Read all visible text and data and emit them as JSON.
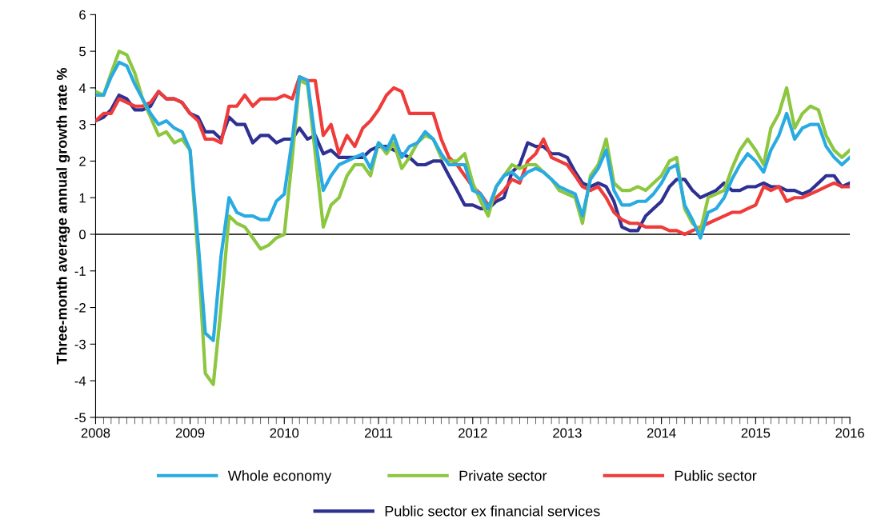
{
  "chart_data": {
    "type": "line",
    "ylabel": "Three-month average annual growth rate %",
    "x": [
      "2008-01",
      "2008-02",
      "2008-03",
      "2008-04",
      "2008-05",
      "2008-06",
      "2008-07",
      "2008-08",
      "2008-09",
      "2008-10",
      "2008-11",
      "2008-12",
      "2009-01",
      "2009-02",
      "2009-03",
      "2009-04",
      "2009-05",
      "2009-06",
      "2009-07",
      "2009-08",
      "2009-09",
      "2009-10",
      "2009-11",
      "2009-12",
      "2010-01",
      "2010-02",
      "2010-03",
      "2010-04",
      "2010-05",
      "2010-06",
      "2010-07",
      "2010-08",
      "2010-09",
      "2010-10",
      "2010-11",
      "2010-12",
      "2011-01",
      "2011-02",
      "2011-03",
      "2011-04",
      "2011-05",
      "2011-06",
      "2011-07",
      "2011-08",
      "2011-09",
      "2011-10",
      "2011-11",
      "2011-12",
      "2012-01",
      "2012-02",
      "2012-03",
      "2012-04",
      "2012-05",
      "2012-06",
      "2012-07",
      "2012-08",
      "2012-09",
      "2012-10",
      "2012-11",
      "2012-12",
      "2013-01",
      "2013-02",
      "2013-03",
      "2013-04",
      "2013-05",
      "2013-06",
      "2013-07",
      "2013-08",
      "2013-09",
      "2013-10",
      "2013-11",
      "2013-12",
      "2014-01",
      "2014-02",
      "2014-03",
      "2014-04",
      "2014-05",
      "2014-06",
      "2014-07",
      "2014-08",
      "2014-09",
      "2014-10",
      "2014-11",
      "2014-12",
      "2015-01",
      "2015-02",
      "2015-03",
      "2015-04",
      "2015-05",
      "2015-06",
      "2015-07",
      "2015-08",
      "2015-09",
      "2015-10",
      "2015-11",
      "2015-12",
      "2016-01"
    ],
    "series": [
      {
        "name": "Whole economy",
        "color": "#29abe2",
        "values": [
          3.8,
          3.8,
          4.3,
          4.7,
          4.6,
          4.1,
          3.7,
          3.3,
          3.0,
          3.1,
          2.9,
          2.8,
          2.3,
          -0.2,
          -2.7,
          -2.9,
          -0.6,
          1.0,
          0.6,
          0.5,
          0.5,
          0.4,
          0.4,
          0.9,
          1.1,
          2.6,
          4.3,
          4.2,
          2.6,
          1.2,
          1.6,
          1.9,
          2.0,
          2.1,
          2.2,
          1.8,
          2.5,
          2.3,
          2.7,
          2.1,
          2.4,
          2.5,
          2.8,
          2.6,
          2.2,
          1.9,
          1.9,
          1.9,
          1.2,
          1.1,
          0.7,
          1.3,
          1.6,
          1.7,
          1.5,
          1.7,
          1.8,
          1.7,
          1.5,
          1.3,
          1.2,
          1.1,
          0.5,
          1.5,
          1.8,
          2.3,
          1.2,
          0.8,
          0.8,
          0.9,
          0.9,
          1.1,
          1.4,
          1.8,
          1.9,
          0.8,
          0.4,
          -0.1,
          0.6,
          0.7,
          1.0,
          1.5,
          1.9,
          2.2,
          2.0,
          1.7,
          2.3,
          2.7,
          3.3,
          2.6,
          2.9,
          3.0,
          3.0,
          2.4,
          2.1,
          1.9,
          2.1
        ]
      },
      {
        "name": "Private sector",
        "color": "#8dc63f",
        "values": [
          3.9,
          3.8,
          4.4,
          5.0,
          4.9,
          4.4,
          3.7,
          3.2,
          2.7,
          2.8,
          2.5,
          2.6,
          2.3,
          -0.6,
          -3.8,
          -4.1,
          -2.0,
          0.5,
          0.3,
          0.2,
          -0.1,
          -0.4,
          -0.3,
          -0.1,
          0.0,
          2.1,
          4.2,
          4.1,
          2.2,
          0.2,
          0.8,
          1.0,
          1.6,
          1.9,
          1.9,
          1.6,
          2.5,
          2.2,
          2.5,
          1.8,
          2.1,
          2.5,
          2.7,
          2.6,
          2.1,
          2.0,
          2.0,
          2.2,
          1.4,
          0.9,
          0.5,
          1.3,
          1.6,
          1.9,
          1.8,
          1.9,
          1.9,
          1.7,
          1.5,
          1.2,
          1.1,
          1.0,
          0.3,
          1.6,
          1.9,
          2.6,
          1.4,
          1.2,
          1.2,
          1.3,
          1.2,
          1.4,
          1.6,
          2.0,
          2.1,
          0.7,
          0.3,
          0.1,
          1.0,
          1.1,
          1.2,
          1.8,
          2.3,
          2.6,
          2.3,
          1.9,
          2.9,
          3.3,
          4.0,
          2.9,
          3.3,
          3.5,
          3.4,
          2.7,
          2.3,
          2.1,
          2.3
        ]
      },
      {
        "name": "Public sector",
        "color": "#ef3b39",
        "values": [
          3.1,
          3.3,
          3.3,
          3.7,
          3.6,
          3.5,
          3.5,
          3.6,
          3.9,
          3.7,
          3.7,
          3.6,
          3.3,
          3.1,
          2.6,
          2.6,
          2.5,
          3.5,
          3.5,
          3.8,
          3.5,
          3.7,
          3.7,
          3.7,
          3.8,
          3.7,
          4.3,
          4.2,
          4.2,
          2.7,
          3.0,
          2.2,
          2.7,
          2.4,
          2.9,
          3.1,
          3.4,
          3.8,
          4.0,
          3.9,
          3.3,
          3.3,
          3.3,
          3.3,
          2.6,
          2.1,
          1.9,
          1.6,
          1.3,
          1.1,
          0.8,
          1.0,
          1.2,
          1.5,
          1.4,
          2.0,
          2.2,
          2.6,
          2.1,
          2.0,
          1.9,
          1.6,
          1.3,
          1.2,
          1.3,
          1.0,
          0.6,
          0.4,
          0.3,
          0.3,
          0.2,
          0.2,
          0.2,
          0.1,
          0.1,
          0.0,
          0.1,
          0.2,
          0.3,
          0.4,
          0.5,
          0.6,
          0.6,
          0.7,
          0.8,
          1.3,
          1.2,
          1.3,
          0.9,
          1.0,
          1.0,
          1.1,
          1.2,
          1.3,
          1.4,
          1.3,
          1.3
        ]
      },
      {
        "name": "Public sector ex financial services",
        "color": "#2e3192",
        "values": [
          3.1,
          3.2,
          3.4,
          3.8,
          3.7,
          3.4,
          3.4,
          3.5,
          3.9,
          3.7,
          3.7,
          3.6,
          3.3,
          3.2,
          2.8,
          2.8,
          2.6,
          3.2,
          3.0,
          3.0,
          2.5,
          2.7,
          2.7,
          2.5,
          2.6,
          2.6,
          2.9,
          2.6,
          2.7,
          2.2,
          2.3,
          2.1,
          2.1,
          2.1,
          2.1,
          2.3,
          2.4,
          2.4,
          2.3,
          2.2,
          2.1,
          1.9,
          1.9,
          2.0,
          2.0,
          1.6,
          1.2,
          0.8,
          0.8,
          0.7,
          0.7,
          0.9,
          1.0,
          1.7,
          1.9,
          2.5,
          2.4,
          2.4,
          2.2,
          2.2,
          2.1,
          1.7,
          1.4,
          1.3,
          1.4,
          1.3,
          0.9,
          0.2,
          0.1,
          0.1,
          0.5,
          0.7,
          0.9,
          1.3,
          1.5,
          1.5,
          1.2,
          1.0,
          1.1,
          1.2,
          1.4,
          1.2,
          1.2,
          1.3,
          1.3,
          1.4,
          1.3,
          1.3,
          1.2,
          1.2,
          1.1,
          1.2,
          1.4,
          1.6,
          1.6,
          1.3,
          1.4
        ]
      }
    ],
    "xlim": [
      "2008-01",
      "2016-01"
    ],
    "xticks": [
      {
        "value": "2008-01",
        "label": "2008"
      },
      {
        "value": "2009-01",
        "label": "2009"
      },
      {
        "value": "2010-01",
        "label": "2010"
      },
      {
        "value": "2011-01",
        "label": "2011"
      },
      {
        "value": "2012-01",
        "label": "2012"
      },
      {
        "value": "2013-01",
        "label": "2013"
      },
      {
        "value": "2014-01",
        "label": "2014"
      },
      {
        "value": "2015-01",
        "label": "2015"
      },
      {
        "value": "2016-01",
        "label": "2016"
      }
    ],
    "ylim": [
      -5,
      6
    ],
    "yticks": [
      -5,
      -4,
      -3,
      -2,
      -1,
      0,
      1,
      2,
      3,
      4,
      5,
      6
    ],
    "ref_lines": [
      {
        "axis": "y",
        "value": 0,
        "color": "#000000"
      }
    ],
    "grid": false,
    "legend": "bottom",
    "line_style": "solid",
    "marker": "none"
  }
}
